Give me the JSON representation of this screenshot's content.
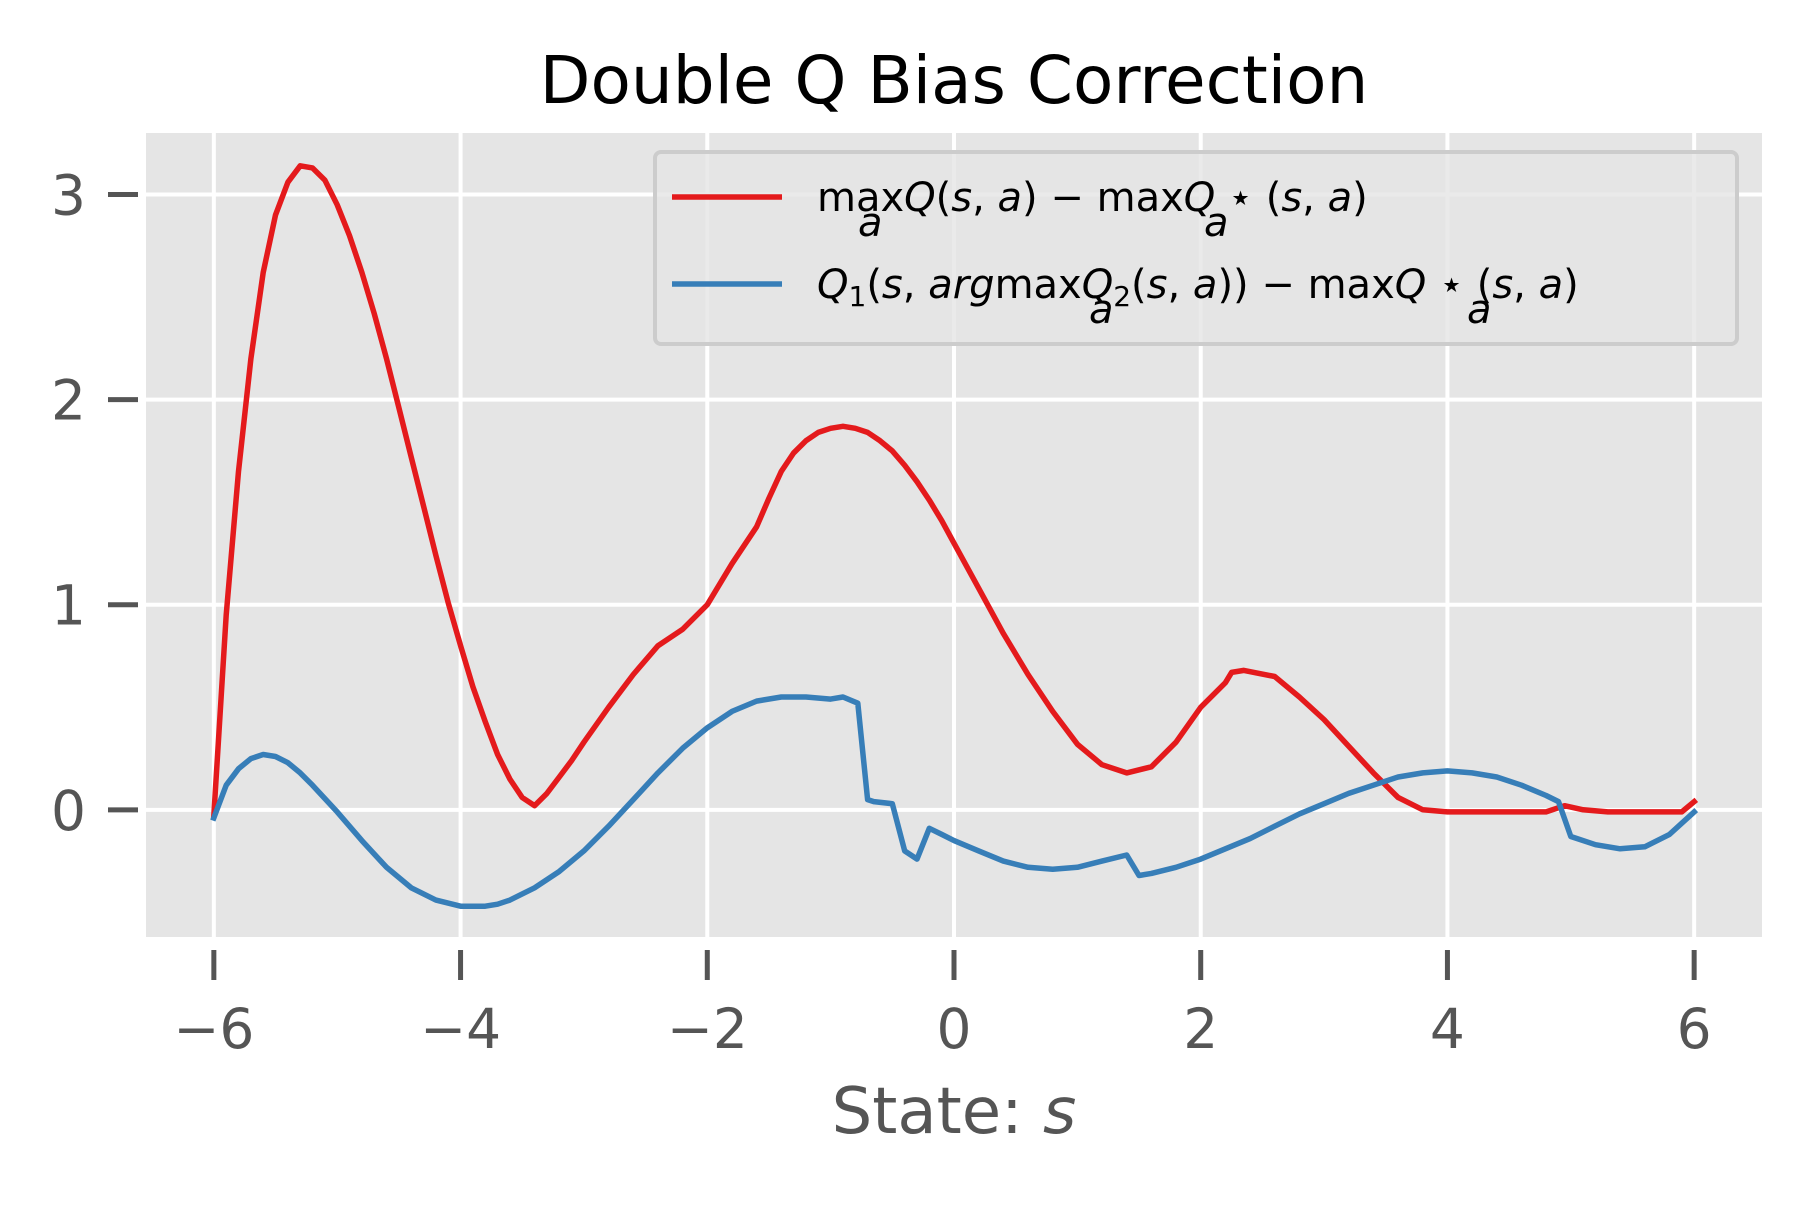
{
  "chart_data": {
    "type": "line",
    "title": "Double Q Bias Correction",
    "xlabel_prefix": "State: ",
    "xlabel_var": "s",
    "ylabel": "",
    "xlim": [
      -6.55,
      6.55
    ],
    "ylim": [
      -0.62,
      3.3
    ],
    "xticks": [
      -6,
      -4,
      -2,
      0,
      2,
      4,
      6
    ],
    "xtick_labels": [
      "−6",
      "−4",
      "−2",
      "0",
      "2",
      "4",
      "6"
    ],
    "yticks": [
      0,
      1,
      2,
      3
    ],
    "ytick_labels": [
      "0",
      "1",
      "2",
      "3"
    ],
    "grid": true,
    "legend_position": "top-right",
    "style": "ggplot",
    "series": [
      {
        "name": "max_a Q(s,a) − max_a Q*(s,a)",
        "color": "#e41a1c",
        "x": [
          -6.0,
          -5.9,
          -5.8,
          -5.7,
          -5.6,
          -5.5,
          -5.4,
          -5.3,
          -5.2,
          -5.1,
          -5.0,
          -4.9,
          -4.8,
          -4.7,
          -4.6,
          -4.5,
          -4.4,
          -4.3,
          -4.2,
          -4.1,
          -4.0,
          -3.9,
          -3.8,
          -3.7,
          -3.6,
          -3.5,
          -3.4,
          -3.3,
          -3.2,
          -3.1,
          -3.0,
          -2.8,
          -2.6,
          -2.4,
          -2.2,
          -2.0,
          -1.8,
          -1.6,
          -1.5,
          -1.4,
          -1.3,
          -1.2,
          -1.1,
          -1.0,
          -0.9,
          -0.8,
          -0.7,
          -0.6,
          -0.5,
          -0.4,
          -0.3,
          -0.2,
          -0.1,
          0.0,
          0.2,
          0.4,
          0.6,
          0.8,
          1.0,
          1.2,
          1.4,
          1.6,
          1.8,
          2.0,
          2.2,
          2.25,
          2.35,
          2.6,
          2.8,
          3.0,
          3.2,
          3.4,
          3.6,
          3.8,
          4.0,
          4.2,
          4.4,
          4.6,
          4.8,
          4.95,
          5.1,
          5.3,
          5.6,
          5.9,
          6.0
        ],
        "y": [
          -0.03,
          0.95,
          1.65,
          2.2,
          2.62,
          2.9,
          3.06,
          3.14,
          3.13,
          3.07,
          2.95,
          2.8,
          2.62,
          2.42,
          2.2,
          1.96,
          1.72,
          1.48,
          1.24,
          1.01,
          0.8,
          0.6,
          0.43,
          0.27,
          0.15,
          0.06,
          0.02,
          0.08,
          0.16,
          0.24,
          0.33,
          0.5,
          0.66,
          0.8,
          0.88,
          1.0,
          1.2,
          1.38,
          1.52,
          1.65,
          1.74,
          1.8,
          1.84,
          1.86,
          1.87,
          1.86,
          1.84,
          1.8,
          1.75,
          1.68,
          1.6,
          1.51,
          1.41,
          1.3,
          1.08,
          0.86,
          0.66,
          0.48,
          0.32,
          0.22,
          0.18,
          0.21,
          0.33,
          0.5,
          0.62,
          0.67,
          0.68,
          0.65,
          0.55,
          0.44,
          0.31,
          0.18,
          0.06,
          0.0,
          -0.01,
          -0.01,
          -0.01,
          -0.01,
          -0.01,
          0.02,
          0.0,
          -0.01,
          -0.01,
          -0.01,
          0.04
        ]
      },
      {
        "name": "Q1(s, argmax_a Q2(s,a)) − max_a Q*(s,a)",
        "color": "#377eb8",
        "x": [
          -6.0,
          -5.9,
          -5.8,
          -5.7,
          -5.6,
          -5.5,
          -5.4,
          -5.3,
          -5.2,
          -5.0,
          -4.8,
          -4.6,
          -4.4,
          -4.2,
          -4.0,
          -3.8,
          -3.7,
          -3.6,
          -3.4,
          -3.2,
          -3.0,
          -2.8,
          -2.6,
          -2.4,
          -2.2,
          -2.0,
          -1.8,
          -1.6,
          -1.4,
          -1.2,
          -1.0,
          -0.9,
          -0.78,
          -0.7,
          -0.65,
          -0.5,
          -0.4,
          -0.3,
          -0.2,
          -0.1,
          0.0,
          0.2,
          0.4,
          0.6,
          0.8,
          1.0,
          1.2,
          1.4,
          1.5,
          1.6,
          1.8,
          2.0,
          2.2,
          2.4,
          2.6,
          2.8,
          3.0,
          3.2,
          3.4,
          3.6,
          3.8,
          4.0,
          4.2,
          4.4,
          4.6,
          4.8,
          4.9,
          5.0,
          5.2,
          5.4,
          5.6,
          5.8,
          6.0
        ],
        "y": [
          -0.04,
          0.12,
          0.2,
          0.25,
          0.27,
          0.26,
          0.23,
          0.18,
          0.12,
          -0.01,
          -0.15,
          -0.28,
          -0.38,
          -0.44,
          -0.47,
          -0.47,
          -0.46,
          -0.44,
          -0.38,
          -0.3,
          -0.2,
          -0.08,
          0.05,
          0.18,
          0.3,
          0.4,
          0.48,
          0.53,
          0.55,
          0.55,
          0.54,
          0.55,
          0.52,
          0.05,
          0.04,
          0.03,
          -0.2,
          -0.24,
          -0.09,
          -0.12,
          -0.15,
          -0.2,
          -0.25,
          -0.28,
          -0.29,
          -0.28,
          -0.25,
          -0.22,
          -0.32,
          -0.31,
          -0.28,
          -0.24,
          -0.19,
          -0.14,
          -0.08,
          -0.02,
          0.03,
          0.08,
          0.12,
          0.16,
          0.18,
          0.19,
          0.18,
          0.16,
          0.12,
          0.07,
          0.04,
          -0.13,
          -0.17,
          -0.19,
          -0.18,
          -0.12,
          -0.01
        ]
      }
    ]
  }
}
